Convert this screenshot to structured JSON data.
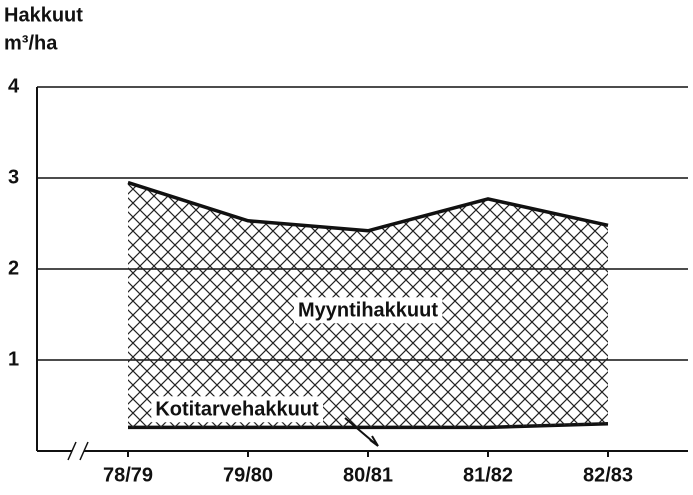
{
  "chart_data": {
    "type": "stacked_area",
    "y_label": [
      "Hakkuut",
      "m³/ha"
    ],
    "categories": [
      "78/79",
      "79/80",
      "80/81",
      "81/82",
      "82/83"
    ],
    "series": [
      {
        "name": "Kotitarvehakkuut",
        "color": "#111111",
        "values": [
          0.26,
          0.26,
          0.26,
          0.26,
          0.3
        ]
      },
      {
        "name": "Myyntihakkuut",
        "color": "#111111",
        "values": [
          2.69,
          2.27,
          2.16,
          2.51,
          2.18
        ]
      }
    ],
    "ylim": [
      0,
      4
    ],
    "yticks": [
      1,
      2,
      3,
      4
    ],
    "grid": true
  }
}
